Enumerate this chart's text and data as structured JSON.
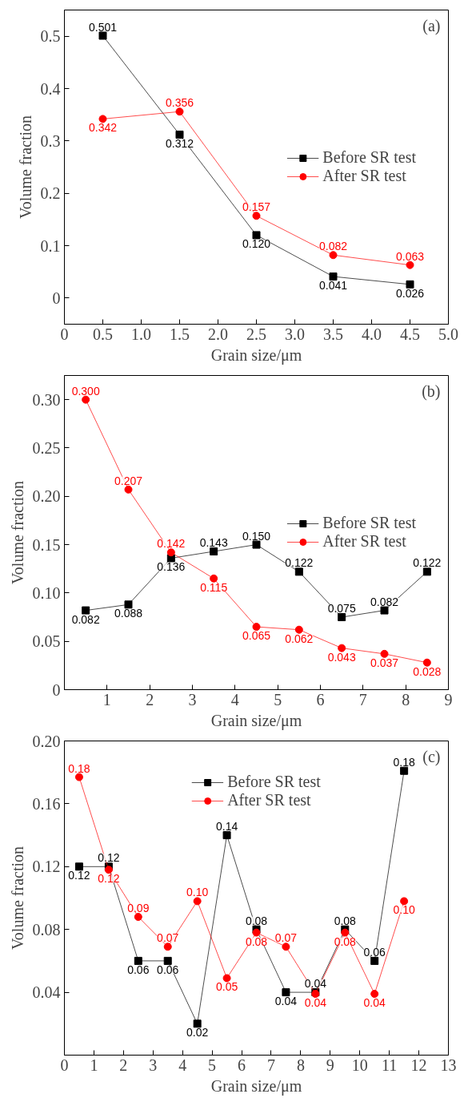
{
  "chart_data": [
    {
      "type": "line",
      "xlabel": "Grain size/μm",
      "ylabel": "Volume fraction",
      "annotations": [
        "(a)"
      ],
      "x": [
        0.5,
        1.5,
        2.5,
        3.5,
        4.5
      ],
      "xlim": [
        0,
        5
      ],
      "ylim": [
        -0.05,
        0.55
      ],
      "xticks": [
        0,
        0.5,
        {
          "value": 1,
          "label": "1.0"
        },
        1.5,
        {
          "value": 2,
          "label": "2.0"
        },
        2.5,
        {
          "value": 3,
          "label": "3.0"
        },
        3.5,
        {
          "value": 4,
          "label": "4.0"
        },
        4.5,
        {
          "value": 5,
          "label": "5.0"
        }
      ],
      "yticks": [
        0,
        0.1,
        0.2,
        0.3,
        0.4,
        0.5
      ],
      "grid": false,
      "legend": "right",
      "series": [
        {
          "name": "Before SR test",
          "color": "#000000",
          "marker": "square",
          "values": [
            0.501,
            0.312,
            0.12,
            0.041,
            0.026
          ],
          "value_labels": [
            "0.501",
            "0.312",
            "0.120",
            "0.041",
            "0.026"
          ]
        },
        {
          "name": "After SR test",
          "color": "#ff0000",
          "marker": "circle",
          "values": [
            0.342,
            0.356,
            0.157,
            0.082,
            0.063
          ],
          "value_labels": [
            "0.342",
            "0.356",
            "0.157",
            "0.082",
            "0.063"
          ]
        }
      ]
    },
    {
      "type": "line",
      "xlabel": "Grain size/μm",
      "ylabel": "Volume fraction",
      "annotations": [
        "(b)"
      ],
      "x": [
        0.5,
        1.5,
        2.5,
        3.5,
        4.5,
        5.5,
        6.5,
        7.5,
        8.5
      ],
      "xlim": [
        0,
        9
      ],
      "ylim": [
        0,
        0.325
      ],
      "xticks": [
        1,
        2,
        3,
        4,
        5,
        6,
        7,
        8,
        9
      ],
      "yticks": [
        0,
        0.05,
        {
          "value": 0.1,
          "label": "0.10"
        },
        0.15,
        {
          "value": 0.2,
          "label": "0.20"
        },
        0.25,
        {
          "value": 0.3,
          "label": "0.30"
        }
      ],
      "grid": false,
      "legend": "right",
      "series": [
        {
          "name": "Before SR test",
          "color": "#000000",
          "marker": "square",
          "values": [
            0.082,
            0.088,
            0.136,
            0.143,
            0.15,
            0.122,
            0.075,
            0.082,
            0.122
          ],
          "value_labels": [
            "0.082",
            "0.088",
            "0.136",
            "0.143",
            "0.150",
            "0.122",
            "0.075",
            "0.082",
            "0.122"
          ]
        },
        {
          "name": "After SR test",
          "color": "#ff0000",
          "marker": "circle",
          "values": [
            0.3,
            0.207,
            0.142,
            0.115,
            0.065,
            0.062,
            0.043,
            0.037,
            0.028
          ],
          "value_labels": [
            "0.300",
            "0.207",
            "0.142",
            "0.115",
            "0.065",
            "0.062",
            "0.043",
            "0.037",
            "0.028"
          ]
        }
      ]
    },
    {
      "type": "line",
      "xlabel": "Grain size/μm",
      "ylabel": "Volume fraction",
      "annotations": [
        "(c)"
      ],
      "x": [
        0.5,
        1.5,
        2.5,
        3.5,
        4.5,
        5.5,
        6.5,
        7.5,
        8.5,
        9.5,
        10.5,
        11.5
      ],
      "xlim": [
        0,
        13
      ],
      "ylim": [
        0,
        0.2
      ],
      "xticks": [
        0,
        1,
        2,
        3,
        4,
        5,
        6,
        7,
        8,
        9,
        10,
        11,
        12,
        13
      ],
      "yticks": [
        0.04,
        0.08,
        0.12,
        0.16,
        {
          "value": 0.2,
          "label": "0.20"
        }
      ],
      "grid": false,
      "legend": "top",
      "series": [
        {
          "name": "Before SR test",
          "color": "#000000",
          "marker": "square",
          "values": [
            0.12,
            0.12,
            0.06,
            0.06,
            0.02,
            0.14,
            0.08,
            0.04,
            0.04,
            0.08,
            0.06,
            0.181
          ],
          "value_labels": [
            "0.12",
            "0.12",
            "0.06",
            "0.06",
            "0.02",
            "0.14",
            "0.08",
            "0.04",
            "0.04",
            "0.08",
            "0.06",
            "0.18"
          ]
        },
        {
          "name": "After SR test",
          "color": "#ff0000",
          "marker": "circle",
          "values": [
            0.177,
            0.118,
            0.088,
            0.069,
            0.098,
            0.049,
            0.078,
            0.069,
            0.039,
            0.078,
            0.039,
            0.098
          ],
          "value_labels": [
            "0.18",
            "0.12",
            "0.09",
            "0.07",
            "0.10",
            "0.05",
            "0.08",
            "0.07",
            "0.04",
            "0.08",
            "0.04",
            "0.10"
          ]
        }
      ]
    }
  ]
}
